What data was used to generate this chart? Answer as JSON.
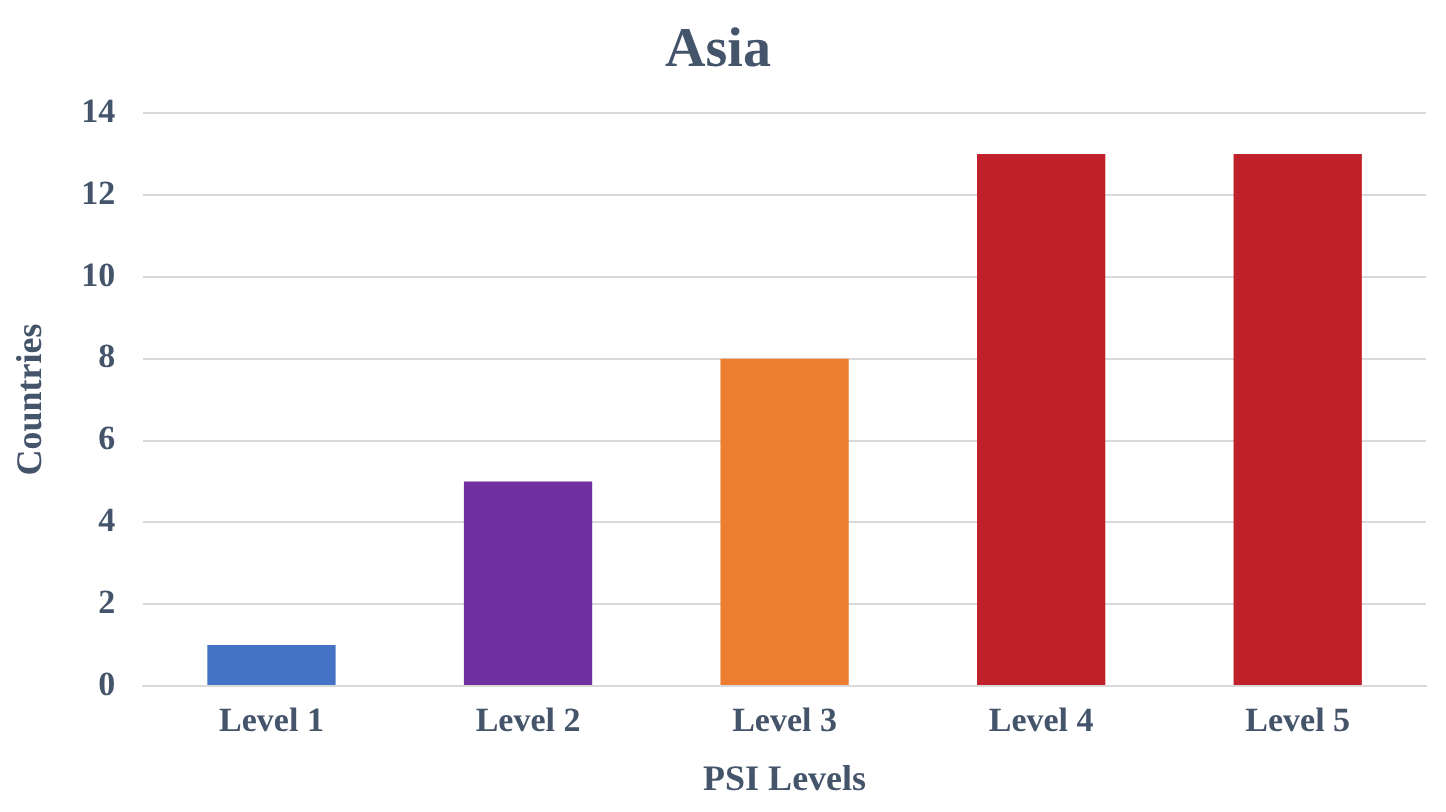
{
  "chart_data": {
    "type": "bar",
    "title": "Asia",
    "xlabel": "PSI Levels",
    "ylabel": "Countries",
    "categories": [
      "Level 1",
      "Level 2",
      "Level 3",
      "Level 4",
      "Level 5"
    ],
    "values": [
      1,
      5,
      8,
      13,
      13
    ],
    "colors": [
      "#4472c4",
      "#7030a0",
      "#ed7d31",
      "#c0202a",
      "#c0202a"
    ],
    "ylim": [
      0,
      14
    ],
    "yticks": [
      0,
      2,
      4,
      6,
      8,
      10,
      12,
      14
    ],
    "grid": "y",
    "legend": false
  }
}
